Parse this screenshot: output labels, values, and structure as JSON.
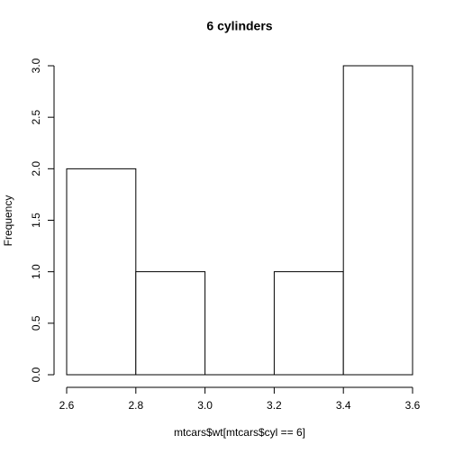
{
  "chart_data": {
    "type": "histogram",
    "title": "6 cylinders",
    "x_label": "mtcars$wt[mtcars$cyl == 6]",
    "y_label": "Frequency",
    "bins": [
      2.6,
      2.8,
      3.0,
      3.2,
      3.4,
      3.6
    ],
    "values": [
      2,
      1,
      0,
      1,
      3
    ],
    "color": "#ffffff",
    "edge_color": "#000000",
    "xlim": [
      2.6,
      3.6
    ],
    "xticks": [
      2.6,
      2.8,
      {
        "value": 3,
        "label": "3.0"
      },
      3.2,
      3.4,
      3.6
    ],
    "ylim": [
      0,
      3
    ],
    "yticks": [
      {
        "value": 0,
        "label": "0.0"
      },
      {
        "value": 0.5,
        "label": "0.5"
      },
      {
        "value": 1,
        "label": "1.0"
      },
      {
        "value": 1.5,
        "label": "1.5"
      },
      {
        "value": 2,
        "label": "2.0"
      },
      {
        "value": 2.5,
        "label": "2.5"
      },
      {
        "value": 3,
        "label": "3.0"
      }
    ]
  }
}
